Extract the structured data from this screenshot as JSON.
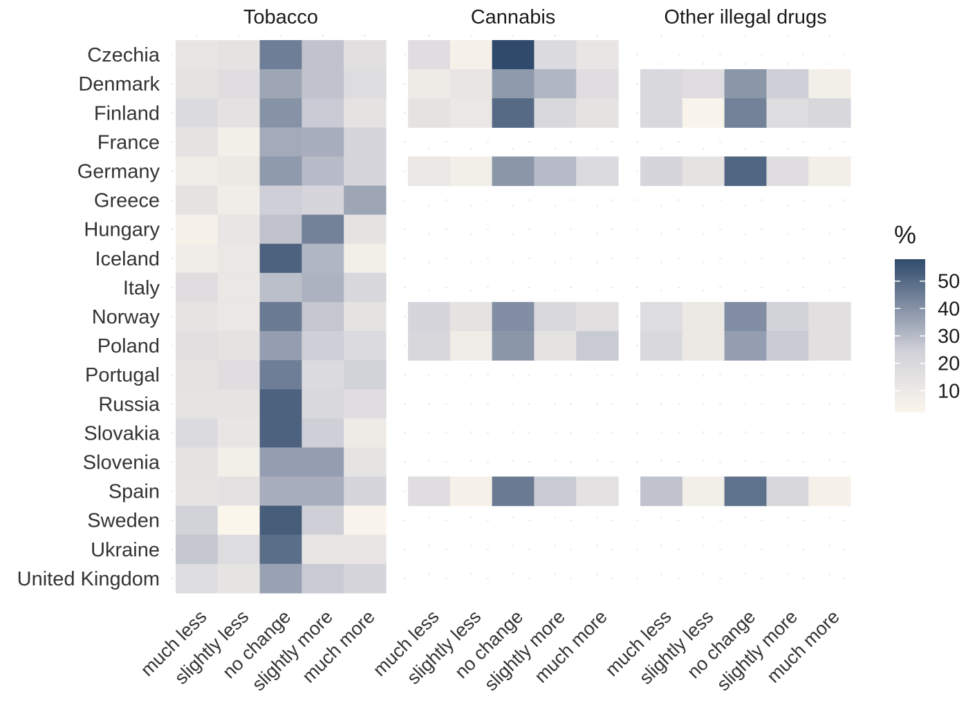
{
  "chart_data": {
    "type": "heatmap",
    "facets": [
      "Tobacco",
      "Cannabis",
      "Other illegal drugs"
    ],
    "rows": [
      "Czechia",
      "Denmark",
      "Finland",
      "France",
      "Germany",
      "Greece",
      "Hungary",
      "Iceland",
      "Italy",
      "Norway",
      "Poland",
      "Portugal",
      "Russia",
      "Slovakia",
      "Slovenia",
      "Spain",
      "Sweden",
      "Ukraine",
      "United Kingdom"
    ],
    "columns": [
      "much less",
      "slightly less",
      "no change",
      "slightly more",
      "much more"
    ],
    "values": {
      "Tobacco": [
        [
          12,
          14,
          45,
          28,
          16
        ],
        [
          14,
          17,
          35,
          28,
          18
        ],
        [
          19,
          15,
          40,
          26,
          14
        ],
        [
          14,
          7,
          34,
          33,
          22
        ],
        [
          8,
          10,
          38,
          30,
          22
        ],
        [
          14,
          8,
          25,
          22,
          35
        ],
        [
          5,
          12,
          28,
          44,
          14
        ],
        [
          8,
          11,
          52,
          31,
          7
        ],
        [
          17,
          11,
          29,
          32,
          21
        ],
        [
          13,
          11,
          46,
          27,
          14
        ],
        [
          16,
          14,
          37,
          25,
          19
        ],
        [
          14,
          17,
          45,
          19,
          24
        ],
        [
          13,
          13,
          52,
          20,
          17
        ],
        [
          19,
          12,
          52,
          25,
          9
        ],
        [
          14,
          7,
          37,
          37,
          13
        ],
        [
          13,
          15,
          33,
          33,
          22
        ],
        [
          24,
          2,
          53,
          25,
          3
        ],
        [
          27,
          18,
          49,
          12,
          12
        ],
        [
          18,
          13,
          36,
          26,
          22
        ]
      ],
      "Cannabis": [
        [
          17,
          5,
          58,
          19,
          12
        ],
        [
          9,
          12,
          38,
          31,
          17
        ],
        [
          14,
          11,
          50,
          20,
          14
        ],
        null,
        [
          11,
          7,
          39,
          30,
          19
        ],
        null,
        null,
        null,
        null,
        [
          22,
          14,
          41,
          20,
          16
        ],
        [
          21,
          8,
          39,
          14,
          26
        ],
        null,
        null,
        null,
        null,
        [
          17,
          5,
          46,
          26,
          15
        ],
        null,
        null,
        null
      ],
      "Other illegal drugs": [
        null,
        [
          20,
          17,
          39,
          25,
          7
        ],
        [
          20,
          3,
          44,
          18,
          21
        ],
        null,
        [
          22,
          14,
          51,
          17,
          7
        ],
        null,
        null,
        null,
        null,
        [
          18,
          10,
          41,
          24,
          16
        ],
        [
          20,
          10,
          37,
          26,
          16
        ],
        null,
        null,
        null,
        null,
        [
          28,
          7,
          48,
          21,
          5
        ],
        null,
        null,
        null
      ]
    },
    "legend": {
      "title": "%",
      "ticks": [
        10,
        20,
        30,
        40,
        50
      ],
      "range": [
        2,
        58
      ],
      "color_low": "#fbf6ec",
      "color_mid": "#d1d1d9",
      "color_high": "#2f4a6b"
    },
    "grid": true
  }
}
